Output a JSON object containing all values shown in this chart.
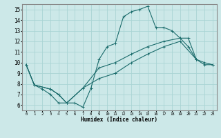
{
  "xlabel": "Humidex (Indice chaleur)",
  "bg_color": "#cce8e8",
  "grid_color": "#aad4d4",
  "line_color": "#1a6b6b",
  "xlim": [
    -0.5,
    23.5
  ],
  "ylim": [
    5.5,
    15.5
  ],
  "xticks": [
    0,
    1,
    2,
    3,
    4,
    5,
    6,
    7,
    8,
    9,
    10,
    11,
    12,
    13,
    14,
    15,
    16,
    17,
    18,
    19,
    20,
    21,
    22,
    23
  ],
  "yticks": [
    6,
    7,
    8,
    9,
    10,
    11,
    12,
    13,
    14,
    15
  ],
  "line1_x": [
    0,
    1,
    2,
    3,
    4,
    5,
    6,
    7,
    8,
    9,
    10,
    11,
    12,
    13,
    14,
    15,
    16,
    17,
    18,
    19,
    20,
    21
  ],
  "line1_y": [
    9.8,
    7.9,
    7.5,
    7.0,
    6.2,
    6.2,
    6.2,
    5.8,
    7.6,
    10.3,
    11.5,
    11.8,
    14.3,
    14.8,
    15.0,
    15.3,
    13.3,
    13.3,
    13.0,
    12.3,
    11.5,
    10.3
  ],
  "line2_x": [
    0,
    1,
    3,
    4,
    5,
    7,
    9,
    11,
    13,
    15,
    17,
    19,
    20,
    21,
    22,
    23
  ],
  "line2_y": [
    9.8,
    7.9,
    7.5,
    7.0,
    6.2,
    7.6,
    9.5,
    10.0,
    10.8,
    11.5,
    12.0,
    12.3,
    12.3,
    10.3,
    10.0,
    9.8
  ],
  "line3_x": [
    0,
    1,
    3,
    4,
    5,
    7,
    9,
    11,
    13,
    15,
    17,
    19,
    21,
    22,
    23
  ],
  "line3_y": [
    9.8,
    7.9,
    7.5,
    7.0,
    6.2,
    7.6,
    8.5,
    9.0,
    10.0,
    10.8,
    11.5,
    12.0,
    10.3,
    9.8,
    9.8
  ]
}
